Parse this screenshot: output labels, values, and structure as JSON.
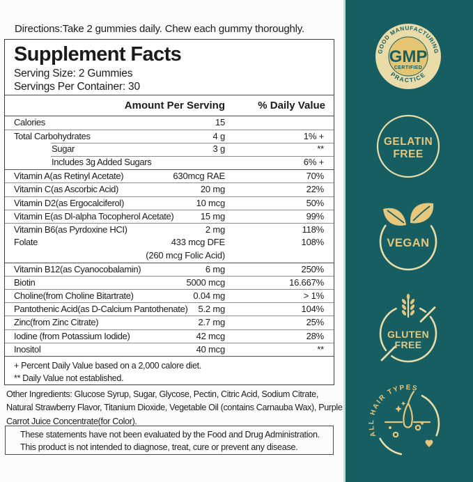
{
  "directions": "Directions:Take 2 gummies daily. Chew each gummy thoroughly.",
  "supplement_facts": {
    "title": "Supplement Facts",
    "serving_size": "Serving Size: 2 Gummies",
    "servings_per_container": "Servings Per Container: 30",
    "columns": {
      "amount": "Amount Per Serving",
      "dv": "% Daily Value"
    },
    "rows": [
      {
        "name": "Calories",
        "amount": "15",
        "dv": "",
        "sep": "none"
      },
      {
        "name": "Total Carbohydrates",
        "amount": "4 g",
        "dv": "1%  +",
        "sep": "thin"
      },
      {
        "name": "Sugar",
        "amount": "3 g",
        "dv": "**",
        "sep": "sub",
        "indent": true
      },
      {
        "name": "Includes 3g Added Sugars",
        "amount": "",
        "dv": "6% +",
        "sep": "sub",
        "indent": true
      },
      {
        "name": "Vitamin A(as Retinyl Acetate)",
        "amount": "630mcg RAE",
        "dv": "70%",
        "sep": "group"
      },
      {
        "name": "Vitamin C(as Ascorbic Acid)",
        "amount": "20 mg",
        "dv": "22%",
        "sep": "thin"
      },
      {
        "name": "Vitamin D2(as Ergocalciferol)",
        "amount": "10 mcg",
        "dv": "50%",
        "sep": "thin"
      },
      {
        "name": "Vitamin E(as Dl-alpha Tocopherol Acetate)",
        "amount": "15 mg",
        "dv": "99%",
        "sep": "thin"
      },
      {
        "name": "Vitamin B6(as Pyrdoxine HCI)",
        "amount": "2 mg",
        "dv": "118%",
        "sep": "thin"
      },
      {
        "name": "Folate",
        "amount": "433 mcg DFE",
        "dv": "108%",
        "sep": "none"
      },
      {
        "name": "",
        "amount": "(260 mcg Folic Acid)",
        "dv": "",
        "sep": "none"
      },
      {
        "name": "Vitamin B12(as Cyanocobalamin)",
        "amount": "6 mg",
        "dv": "250%",
        "sep": "group"
      },
      {
        "name": "Biotin",
        "amount": "5000 mcg",
        "dv": "16.667%",
        "sep": "thin"
      },
      {
        "name": "Choline(from Choline Bitartrate)",
        "amount": "0.04 mg",
        "dv": "> 1%",
        "sep": "thin"
      },
      {
        "name": "Pantothenic Acid(as D-Calcium Pantothenate)",
        "amount": "5.2 mg",
        "dv": "104%",
        "sep": "thin"
      },
      {
        "name": "Zinc(from Zinc Citrate)",
        "amount": "2.7 mg",
        "dv": "25%",
        "sep": "thin"
      },
      {
        "name": "Iodine (from Potassium Iodide)",
        "amount": "42 mcg",
        "dv": "28%",
        "sep": "thin"
      },
      {
        "name": "Inositol",
        "amount": "40 mcg",
        "dv": "**",
        "sep": "thin"
      }
    ],
    "footnotes": [
      "+ Percent Daily Value based on a 2,000 calore diet.",
      "** Daily Value not established."
    ]
  },
  "other_ingredients": {
    "line1": "Other Ingredients: Glucose Syrup, Sugar, Glycose, Pectin, Citric Acid, Sodium Citrate,",
    "line2": "Natural Strawberry Flavor, Titanium Dioxide, Vegetable Oil (contains Carnauba Wax), Purple",
    "line3": "Carrot Juice Concentrate(for Color)."
  },
  "disclaimer": {
    "line1": "These statements have not been evaluated by the Food and Drug Administration.",
    "line2": "This product is not intended to diagnose, treat, cure or prevent any disease."
  },
  "badges": {
    "gmp": {
      "arc_top": "GOOD MANUFACTURING",
      "arc_bottom": "PRACTICE",
      "title": "GMP",
      "subtitle": "CERTIFIED"
    },
    "gelatin": {
      "line1": "GELATIN",
      "line2": "FREE"
    },
    "vegan": {
      "title": "VEGAN"
    },
    "gluten": {
      "line1": "GLUTEN",
      "line2": "FREE"
    },
    "hair": {
      "arc": "ALL HAIR TYPES"
    }
  },
  "colors": {
    "teal": "#175e63",
    "badge_gold": "#e7c77c",
    "badge_cream": "#e9dca9",
    "gmp_fill": "#e5c572"
  }
}
